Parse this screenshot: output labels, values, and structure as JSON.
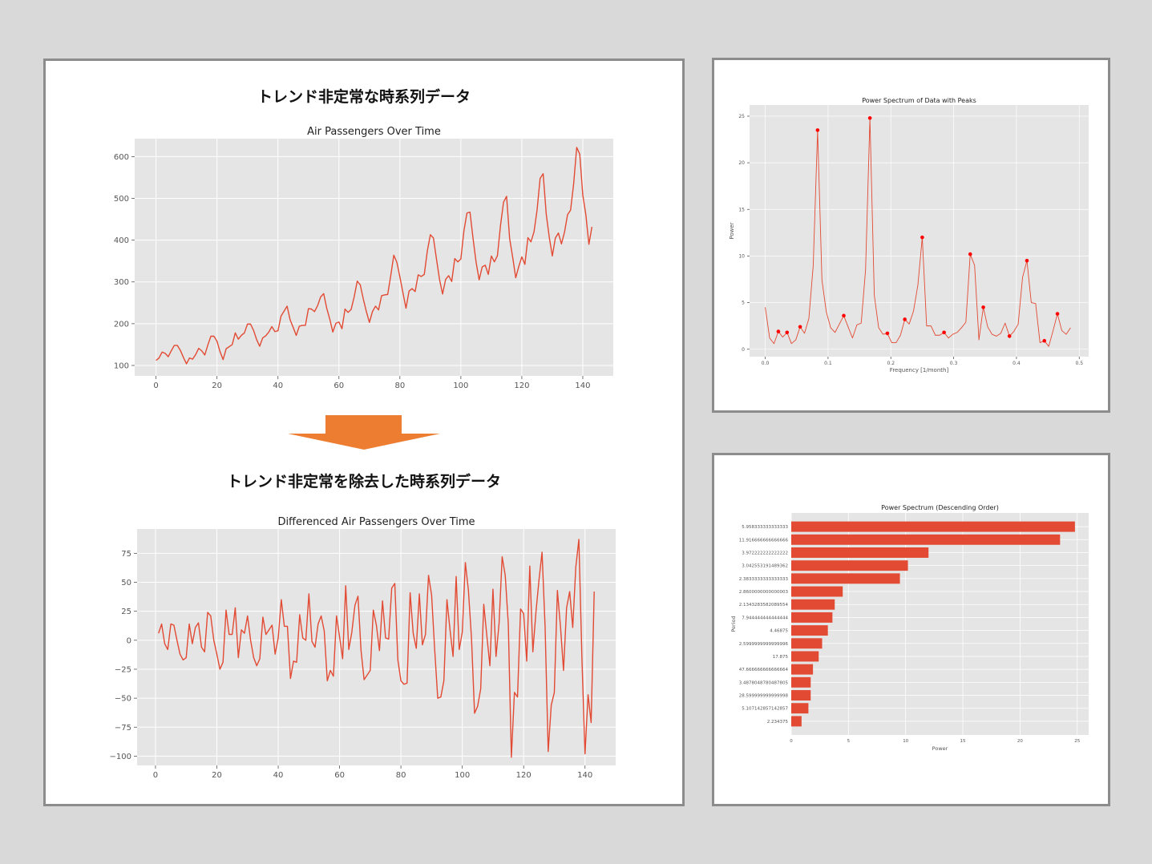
{
  "headings": {
    "top": "トレンド非定常な時系列データ",
    "bottom": "トレンド非定常を除去した時系列データ"
  },
  "colors": {
    "series": "#e24a33",
    "arrow": "#ed7d31",
    "plot_bg": "#e5e5e5",
    "grid": "#ffffff",
    "peak": "#ff0000"
  },
  "chart_data": [
    {
      "type": "line",
      "title": "Air Passengers Over Time",
      "xlabel": "",
      "ylabel": "",
      "xlim": [
        -7,
        150
      ],
      "ylim": [
        75,
        643
      ],
      "xticks": [
        0,
        20,
        40,
        60,
        80,
        100,
        120,
        140
      ],
      "yticks": [
        100,
        200,
        300,
        400,
        500,
        600
      ],
      "x_start": 0,
      "values": [
        112,
        118,
        132,
        129,
        121,
        135,
        148,
        148,
        136,
        119,
        104,
        118,
        115,
        126,
        141,
        135,
        125,
        149,
        170,
        170,
        158,
        133,
        114,
        140,
        145,
        150,
        178,
        163,
        172,
        178,
        199,
        199,
        184,
        162,
        146,
        166,
        171,
        180,
        193,
        181,
        183,
        218,
        230,
        242,
        209,
        191,
        172,
        194,
        196,
        196,
        236,
        235,
        229,
        243,
        264,
        272,
        237,
        211,
        180,
        201,
        204,
        188,
        235,
        227,
        234,
        264,
        302,
        293,
        259,
        229,
        203,
        229,
        242,
        233,
        267,
        269,
        270,
        315,
        364,
        347,
        312,
        274,
        237,
        278,
        284,
        277,
        317,
        313,
        318,
        374,
        413,
        405,
        355,
        306,
        271,
        306,
        315,
        301,
        356,
        348,
        355,
        422,
        465,
        467,
        404,
        347,
        305,
        336,
        340,
        318,
        362,
        348,
        363,
        435,
        491,
        505,
        404,
        359,
        310,
        337,
        360,
        342,
        406,
        396,
        420,
        472,
        548,
        559,
        463,
        407,
        362,
        405,
        417,
        391,
        419,
        461,
        472,
        535,
        622,
        606,
        508,
        461,
        390,
        432
      ]
    },
    {
      "type": "line",
      "title": "Differenced Air Passengers Over Time",
      "xlabel": "",
      "ylabel": "",
      "xlim": [
        -6,
        150
      ],
      "ylim": [
        -108,
        96
      ],
      "xticks": [
        0,
        20,
        40,
        60,
        80,
        100,
        120,
        140
      ],
      "yticks": [
        -100,
        -75,
        -50,
        -25,
        0,
        25,
        50,
        75
      ],
      "x_start": 1,
      "values": [
        6,
        14,
        -3,
        -8,
        14,
        13,
        0,
        -12,
        -17,
        -15,
        14,
        -3,
        11,
        15,
        -6,
        -10,
        24,
        21,
        0,
        -12,
        -25,
        -19,
        26,
        5,
        5,
        28,
        -15,
        9,
        6,
        21,
        0,
        -15,
        -22,
        -16,
        20,
        5,
        9,
        13,
        -12,
        2,
        35,
        12,
        12,
        -33,
        -18,
        -19,
        22,
        2,
        0,
        40,
        -1,
        -6,
        14,
        21,
        8,
        -35,
        -26,
        -31,
        21,
        3,
        -16,
        47,
        -8,
        7,
        30,
        38,
        -9,
        -34,
        -30,
        -26,
        26,
        13,
        -9,
        34,
        2,
        1,
        45,
        49,
        -17,
        -35,
        -38,
        -37,
        41,
        6,
        -7,
        40,
        -4,
        5,
        56,
        39,
        -8,
        -50,
        -49,
        -35,
        35,
        9,
        -14,
        55,
        -8,
        7,
        67,
        43,
        2,
        -63,
        -57,
        -42,
        31,
        4,
        -22,
        44,
        -14,
        15,
        72,
        56,
        14,
        -101,
        -45,
        -49,
        27,
        23,
        -18,
        64,
        -10,
        24,
        52,
        76,
        11,
        -96,
        -56,
        -45,
        43,
        12,
        -26,
        28,
        42,
        11,
        63,
        87,
        -16,
        -98,
        -47,
        -71,
        42
      ]
    },
    {
      "type": "line",
      "title": "Power Spectrum of Data with Peaks",
      "xlabel": "Frequency [1/month]",
      "ylabel": "Power",
      "xlim": [
        -0.025,
        0.515
      ],
      "ylim": [
        -0.8,
        26.2
      ],
      "xticks": [
        0.0,
        0.1,
        0.2,
        0.3,
        0.4,
        0.5
      ],
      "xtick_labels": [
        "0.0",
        "0.1",
        "0.2",
        "0.3",
        "0.4",
        "0.5"
      ],
      "yticks": [
        0,
        5,
        10,
        15,
        20,
        25
      ],
      "x_step": 0.0069444,
      "values": [
        4.5,
        1.2,
        0.6,
        1.9,
        1.3,
        1.8,
        0.6,
        1.0,
        2.4,
        1.7,
        3.3,
        9.0,
        23.5,
        7.4,
        4.0,
        2.3,
        1.8,
        2.7,
        3.6,
        2.4,
        1.2,
        2.6,
        2.8,
        8.5,
        24.8,
        5.8,
        2.3,
        1.6,
        1.7,
        0.7,
        0.7,
        1.5,
        3.2,
        2.7,
        4.1,
        6.9,
        12.0,
        2.5,
        2.5,
        1.5,
        1.5,
        1.8,
        1.2,
        1.6,
        1.8,
        2.3,
        2.9,
        10.2,
        9.0,
        1.0,
        4.5,
        2.4,
        1.6,
        1.4,
        1.7,
        2.8,
        1.4,
        1.9,
        2.7,
        7.7,
        9.5,
        5.0,
        4.9,
        0.7,
        0.9,
        0.3,
        2.0,
        3.8,
        2.0,
        1.6,
        2.3
      ],
      "peaks": [
        3,
        5,
        8,
        12,
        18,
        24,
        28,
        32,
        36,
        41,
        47,
        50,
        56,
        60,
        64,
        67
      ]
    },
    {
      "type": "bar",
      "orientation": "horizontal",
      "title": "Power Spectrum (Descending Order)",
      "xlabel": "Power",
      "ylabel": "Period",
      "xlim": [
        0,
        26
      ],
      "xticks": [
        0,
        5,
        10,
        15,
        20,
        25
      ],
      "categories": [
        "5.958333333333333",
        "11.916666666666666",
        "3.972222222222222",
        "3.042553191489362",
        "2.3833333333333333",
        "2.8600000000000003",
        "2.1343283582089554",
        "7.944444444444444",
        "4.46875",
        "2.5999999999999996",
        "17.875",
        "47.666666666666664",
        "3.4878048780487805",
        "28.599999999999998",
        "5.107142857142857",
        "2.234375"
      ],
      "values": [
        24.8,
        23.5,
        12.0,
        10.2,
        9.5,
        4.5,
        3.8,
        3.6,
        3.2,
        2.7,
        2.4,
        1.9,
        1.7,
        1.7,
        1.5,
        0.9
      ]
    }
  ]
}
